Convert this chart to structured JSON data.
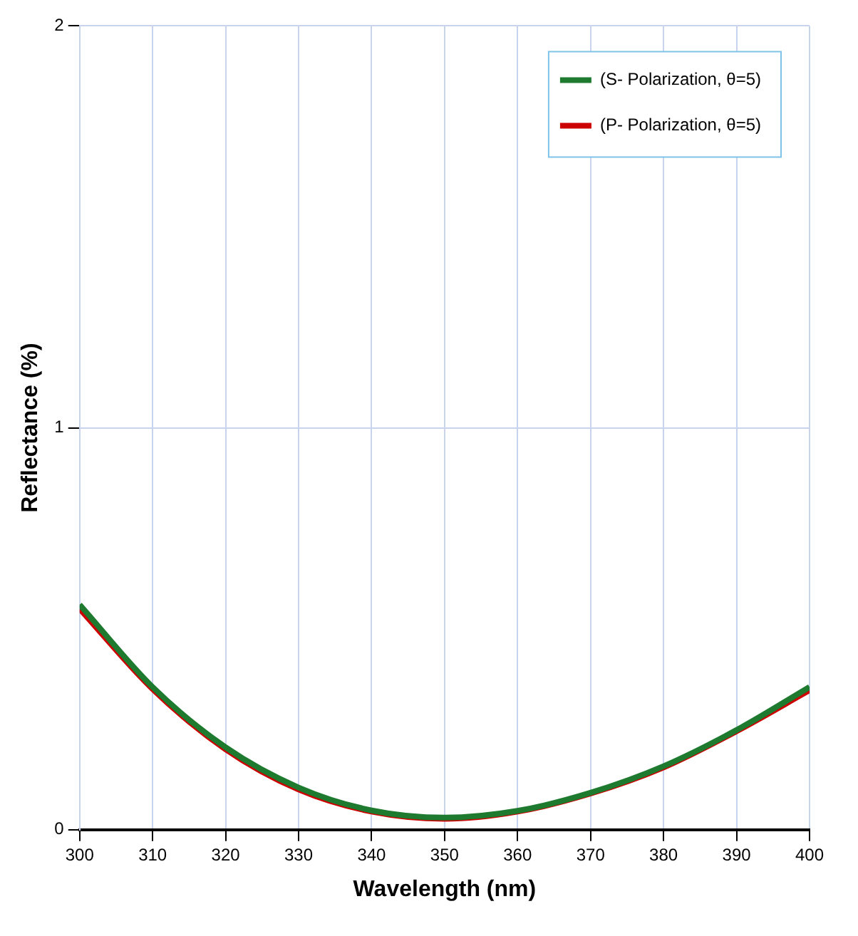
{
  "chart_data": {
    "type": "line",
    "xlabel": "Wavelength (nm)",
    "ylabel": "Reflectance (%)",
    "x": [
      300,
      310,
      320,
      330,
      340,
      350,
      360,
      370,
      380,
      390,
      400
    ],
    "series": [
      {
        "name": "(S- Polarization, θ=5)",
        "color": "#1e7a2e",
        "values": [
          0.56,
          0.355,
          0.205,
          0.105,
          0.048,
          0.03,
          0.047,
          0.092,
          0.158,
          0.248,
          0.355
        ]
      },
      {
        "name": "(P- Polarization, θ=5)",
        "color": "#cc0000",
        "values": [
          0.55,
          0.35,
          0.2,
          0.1,
          0.045,
          0.027,
          0.045,
          0.09,
          0.155,
          0.245,
          0.347
        ]
      }
    ],
    "xlim": [
      300,
      400
    ],
    "xticks": [
      300,
      310,
      320,
      330,
      340,
      350,
      360,
      370,
      380,
      390,
      400
    ],
    "ylim": [
      0,
      2
    ],
    "yticks": [
      0,
      1,
      2
    ],
    "grid": true,
    "legend": "top right",
    "marker": "none",
    "line_style": "solid"
  }
}
